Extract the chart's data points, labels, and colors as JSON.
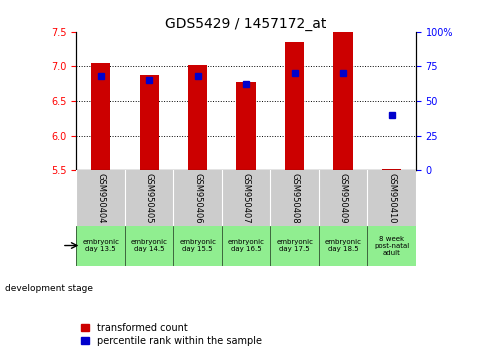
{
  "title": "GDS5429 / 1457172_at",
  "samples": [
    "GSM950404",
    "GSM950405",
    "GSM950406",
    "GSM950407",
    "GSM950408",
    "GSM950409",
    "GSM950410"
  ],
  "dev_stages": [
    "embryonic\nday 13.5",
    "embryonic\nday 14.5",
    "embryonic\nday 15.5",
    "embryonic\nday 16.5",
    "embryonic\nday 17.5",
    "embryonic\nday 18.5",
    "8 week\npost-natal\nadult"
  ],
  "transformed_count": [
    7.05,
    6.88,
    7.02,
    6.78,
    7.35,
    7.5,
    5.52
  ],
  "percentile_rank": [
    68,
    65,
    68,
    62,
    70,
    70,
    40
  ],
  "ylim_left": [
    5.5,
    7.5
  ],
  "ylim_right": [
    0,
    100
  ],
  "yticks_left": [
    5.5,
    6.0,
    6.5,
    7.0,
    7.5
  ],
  "yticks_right": [
    0,
    25,
    50,
    75,
    100
  ],
  "bar_color": "#cc0000",
  "dot_color": "#0000cc",
  "bar_bottom": 5.5,
  "title_fontsize": 10,
  "tick_fontsize": 7,
  "legend_fontsize": 7,
  "sample_fontsize": 6,
  "stage_fontsize": 5,
  "bar_width": 0.4,
  "gray_bg": "#cccccc",
  "green_bg": "#90ee90"
}
